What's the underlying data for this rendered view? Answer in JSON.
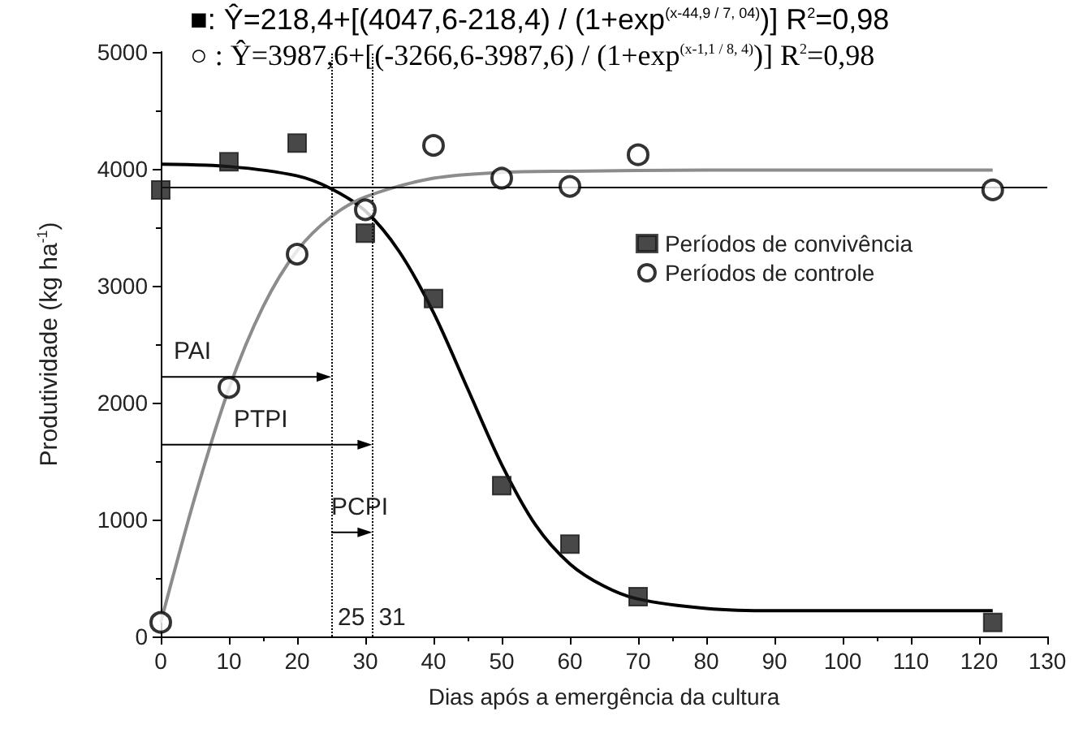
{
  "chart_data": {
    "type": "scatter",
    "title": "■: Ŷ=218,4+[(4047,6-218,4) / (1+exp$^{(x-44,9 / 7, 04)}$)] R$^{2}$=0,98",
    "subtitle": "○ : Ŷ=3987,6+[(-3266,6-3987,6) / (1+exp$^{(x-1,1 / 8, 4)}$)] R$^{2}$=0,98",
    "xlabel": "Dias após a emergência da cultura",
    "ylabel": "Produtividade (kg ha$^{-1}$)",
    "xlim": [
      0,
      130
    ],
    "xticks": [
      0,
      10,
      20,
      30,
      40,
      50,
      60,
      70,
      80,
      90,
      100,
      110,
      120,
      130
    ],
    "ylim": [
      0,
      5000
    ],
    "yticks": [
      0,
      1000,
      2000,
      3000,
      4000,
      5000
    ],
    "grid": false,
    "legend": "top right",
    "series": [
      {
        "name": "Períodos de convivência",
        "marker": "square",
        "color": "#1a1a1a",
        "x": [
          0,
          10,
          20,
          30,
          40,
          50,
          60,
          70,
          122
        ],
        "values": [
          3820,
          4060,
          4220,
          3450,
          2890,
          1290,
          790,
          340,
          120
        ]
      },
      {
        "name": "Períodos de controle",
        "marker": "circle",
        "color": "#000000",
        "x": [
          0,
          10,
          20,
          30,
          40,
          50,
          60,
          70,
          122
        ],
        "values": [
          120,
          2130,
          3270,
          3650,
          4200,
          3920,
          3850,
          4120,
          3820
        ]
      },
      {
        "type": "line",
        "marker": "none",
        "color": "#000000",
        "x": [
          0,
          10,
          20,
          25,
          30,
          35,
          40,
          45,
          50,
          55,
          60,
          65,
          70,
          80,
          90,
          100,
          122
        ],
        "values": [
          4040,
          4020,
          3940,
          3830,
          3640,
          3290,
          2770,
          2120,
          1470,
          950,
          620,
          430,
          320,
          240,
          220,
          220,
          220
        ]
      },
      {
        "type": "line",
        "marker": "none",
        "color": "#8c8c8c",
        "x": [
          0,
          5,
          10,
          15,
          20,
          25,
          30,
          40,
          50,
          60,
          80,
          100,
          122
        ],
        "values": [
          120,
          1190,
          2120,
          2820,
          3300,
          3590,
          3760,
          3920,
          3970,
          3980,
          3990,
          3990,
          3990
        ]
      }
    ],
    "ref_lines": [
      {
        "axis": "y",
        "value": 3850,
        "color": "#000000",
        "line_style": "solid"
      },
      {
        "axis": "x",
        "value": 25,
        "label": "25",
        "color": "#000000",
        "line_style": "dotted"
      },
      {
        "axis": "x",
        "value": 31,
        "label": "31",
        "color": "#000000",
        "line_style": "dotted"
      }
    ],
    "annotations": [
      "PAI",
      "PTPI",
      "PCPI"
    ]
  }
}
